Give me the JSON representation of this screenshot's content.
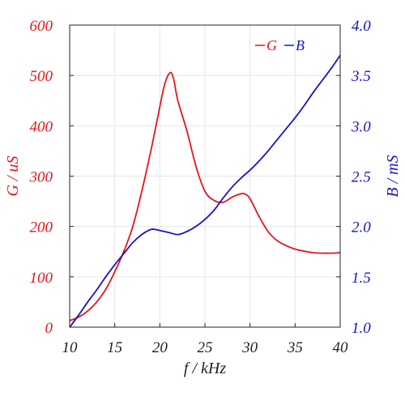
{
  "chart_data": {
    "type": "line",
    "xlabel": "f / kHz",
    "ylabel_left": "G / uS",
    "ylabel_right": "B / mS",
    "xlim": [
      10,
      40
    ],
    "ylim_left": [
      0,
      600
    ],
    "ylim_right": [
      1.0,
      4.0
    ],
    "x_ticks": [
      "10",
      "15",
      "20",
      "25",
      "30",
      "35",
      "40"
    ],
    "y_left_ticks": [
      "0",
      "100",
      "200",
      "300",
      "400",
      "500",
      "600"
    ],
    "y_right_ticks": [
      "1.0",
      "1.5",
      "2.0",
      "2.5",
      "3.0",
      "3.5",
      "4.0"
    ],
    "grid": true,
    "legend_position": "top-right",
    "colors": {
      "G": "#e8141c",
      "B": "#1414cc"
    },
    "series": [
      {
        "name": "G",
        "axis": "left",
        "x": [
          10,
          11,
          12,
          13,
          14,
          15,
          16,
          17,
          18,
          19,
          19.8,
          20.5,
          21.1,
          21.5,
          22,
          23,
          24,
          25,
          26,
          27,
          28,
          29,
          29.5,
          30,
          31,
          32,
          33,
          34,
          35,
          36,
          37,
          38,
          39,
          40
        ],
        "values": [
          13,
          20,
          32,
          50,
          75,
          110,
          150,
          200,
          270,
          350,
          420,
          480,
          505,
          495,
          450,
          390,
          320,
          270,
          252,
          248,
          258,
          265,
          264,
          255,
          220,
          190,
          172,
          162,
          155,
          151,
          148,
          147,
          147,
          148
        ]
      },
      {
        "name": "B",
        "axis": "right",
        "x": [
          10,
          11,
          12,
          13,
          14,
          15,
          16,
          17,
          18,
          19,
          19.5,
          20,
          21,
          22,
          23,
          24,
          25,
          26,
          27,
          28,
          29,
          30,
          31,
          32,
          33,
          34,
          35,
          36,
          37,
          38,
          39,
          40
        ],
        "values": [
          1.0,
          1.12,
          1.25,
          1.37,
          1.5,
          1.62,
          1.73,
          1.84,
          1.92,
          1.97,
          1.97,
          1.96,
          1.94,
          1.92,
          1.95,
          2.0,
          2.07,
          2.16,
          2.28,
          2.39,
          2.48,
          2.56,
          2.65,
          2.75,
          2.86,
          2.97,
          3.08,
          3.2,
          3.33,
          3.45,
          3.57,
          3.7
        ]
      }
    ]
  }
}
